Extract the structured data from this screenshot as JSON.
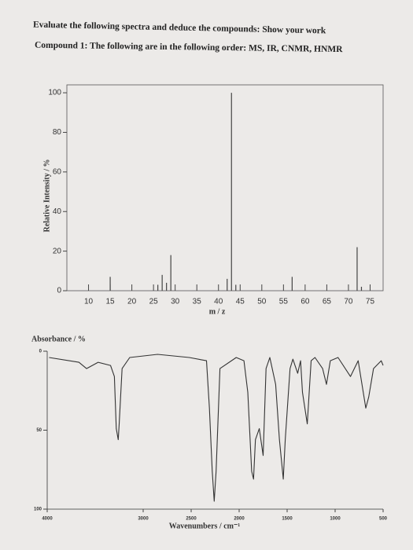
{
  "header": {
    "line1": "Evaluate the following spectra and deduce the compounds: Show your work",
    "line2": "Compound 1: The following are in the following order: MS, IR, CNMR, HNMR"
  },
  "chart_data": [
    {
      "type": "bar",
      "ylabel": "Relative Intensity / %",
      "xlabel": "m / z",
      "color": "#444444",
      "x": [
        15,
        26,
        27,
        28,
        29,
        42,
        43,
        44,
        57,
        72,
        73
      ],
      "values": [
        7,
        3,
        8,
        4,
        18,
        6,
        100,
        3,
        7,
        22,
        2
      ],
      "xlim": [
        5,
        78
      ],
      "xticks": [
        10,
        15,
        20,
        25,
        30,
        35,
        40,
        45,
        50,
        55,
        60,
        65,
        70,
        75
      ],
      "ylim": [
        0,
        104
      ],
      "yticks": [
        0,
        20,
        40,
        60,
        80,
        100
      ]
    },
    {
      "type": "line",
      "ylabel": "Absorbance / %",
      "xlabel": "Wavenumbers / cm⁻¹",
      "color": "#333333",
      "x": [
        3980,
        3670,
        3590,
        3470,
        3340,
        3300,
        3280,
        3260,
        3250,
        3220,
        3140,
        2850,
        2520,
        2340,
        2310,
        2280,
        2260,
        2240,
        2200,
        2030,
        1950,
        1910,
        1870,
        1850,
        1830,
        1790,
        1750,
        1720,
        1680,
        1620,
        1580,
        1540,
        1520,
        1470,
        1440,
        1390,
        1360,
        1340,
        1290,
        1250,
        1210,
        1130,
        1090,
        1050,
        970,
        840,
        800,
        760,
        680,
        650,
        600,
        520,
        500
      ],
      "values": [
        4,
        7,
        11,
        7,
        9,
        16,
        49,
        56,
        46,
        11,
        4,
        2,
        4,
        6,
        36,
        76,
        95,
        76,
        11,
        4,
        6,
        26,
        76,
        81,
        56,
        49,
        66,
        11,
        4,
        21,
        56,
        81,
        56,
        11,
        5,
        14,
        6,
        26,
        46,
        6,
        4,
        11,
        21,
        6,
        4,
        16,
        11,
        6,
        36,
        29,
        11,
        6,
        9
      ],
      "xlim": [
        4000,
        500
      ],
      "xticks": [
        4000,
        3000,
        2500,
        2000,
        1500,
        1000,
        500
      ],
      "ylim": [
        100,
        0
      ],
      "yticks": [
        0,
        50,
        100
      ]
    }
  ]
}
